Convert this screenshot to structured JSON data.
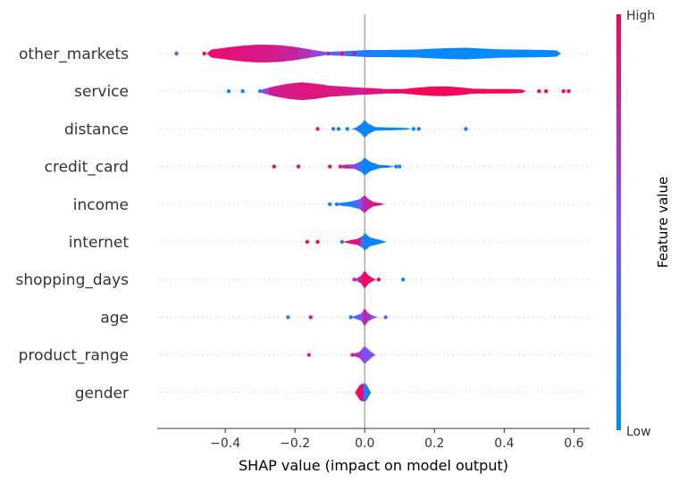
{
  "chart_data": {
    "type": "violin",
    "xlabel": "SHAP value (impact on model output)",
    "xlim": [
      -0.595,
      0.645
    ],
    "xticks": [
      -0.4,
      -0.2,
      0.0,
      0.2,
      0.4,
      0.6
    ],
    "xtick_labels": [
      "−0.4",
      "−0.2",
      "0.0",
      "0.2",
      "0.4",
      "0.6"
    ],
    "colorbar": {
      "title": "Feature value",
      "high_label": "High",
      "low_label": "Low",
      "low_color": "#008bfb",
      "high_color": "#ff0052"
    },
    "features": [
      {
        "name": "other_markets",
        "segments": [
          {
            "x": -0.44,
            "w": 0.45,
            "c": 0.92
          },
          {
            "x": -0.4,
            "w": 0.65,
            "c": 0.9
          },
          {
            "x": -0.36,
            "w": 0.85,
            "c": 0.88
          },
          {
            "x": -0.32,
            "w": 0.97,
            "c": 0.86
          },
          {
            "x": -0.29,
            "w": 1.0,
            "c": 0.85
          },
          {
            "x": -0.25,
            "w": 0.95,
            "c": 0.82
          },
          {
            "x": -0.21,
            "w": 0.8,
            "c": 0.78
          },
          {
            "x": -0.17,
            "w": 0.55,
            "c": 0.72
          },
          {
            "x": -0.14,
            "w": 0.35,
            "c": 0.6
          },
          {
            "x": -0.11,
            "w": 0.18,
            "c": 0.45
          },
          {
            "x": 0.01,
            "w": 0.4,
            "c": 0.15
          },
          {
            "x": 0.05,
            "w": 0.4,
            "c": 0.06
          },
          {
            "x": 0.1,
            "w": 0.42,
            "c": 0.04
          },
          {
            "x": 0.15,
            "w": 0.45,
            "c": 0.03
          },
          {
            "x": 0.2,
            "w": 0.55,
            "c": 0.03
          },
          {
            "x": 0.25,
            "w": 0.62,
            "c": 0.03
          },
          {
            "x": 0.29,
            "w": 0.65,
            "c": 0.03
          },
          {
            "x": 0.33,
            "w": 0.58,
            "c": 0.03
          },
          {
            "x": 0.38,
            "w": 0.48,
            "c": 0.03
          },
          {
            "x": 0.43,
            "w": 0.45,
            "c": 0.03
          },
          {
            "x": 0.48,
            "w": 0.42,
            "c": 0.03
          },
          {
            "x": 0.52,
            "w": 0.4,
            "c": 0.03
          },
          {
            "x": 0.55,
            "w": 0.35,
            "c": 0.03
          }
        ],
        "points": [
          {
            "x": -0.54,
            "c": 0.6
          },
          {
            "x": -0.46,
            "c": 0.9
          },
          {
            "x": -0.105,
            "c": 0.8
          },
          {
            "x": -0.09,
            "c": 0.4
          },
          {
            "x": -0.08,
            "c": 0.3
          },
          {
            "x": -0.065,
            "c": 0.95
          },
          {
            "x": -0.05,
            "c": 0.2
          },
          {
            "x": -0.03,
            "c": 0.9
          },
          {
            "x": -0.01,
            "c": 0.15
          }
        ]
      },
      {
        "name": "service",
        "segments": [
          {
            "x": -0.29,
            "w": 0.25,
            "c": 0.6
          },
          {
            "x": -0.26,
            "w": 0.55,
            "c": 0.82
          },
          {
            "x": -0.22,
            "w": 0.85,
            "c": 0.85
          },
          {
            "x": -0.18,
            "w": 1.0,
            "c": 0.86
          },
          {
            "x": -0.14,
            "w": 0.85,
            "c": 0.87
          },
          {
            "x": -0.1,
            "w": 0.62,
            "c": 0.86
          },
          {
            "x": -0.06,
            "w": 0.52,
            "c": 0.85
          },
          {
            "x": -0.02,
            "w": 0.42,
            "c": 0.8
          },
          {
            "x": 0.02,
            "w": 0.35,
            "c": 0.88
          },
          {
            "x": 0.06,
            "w": 0.25,
            "c": 0.9
          },
          {
            "x": 0.11,
            "w": 0.25,
            "c": 0.97
          },
          {
            "x": 0.15,
            "w": 0.4,
            "c": 0.98
          },
          {
            "x": 0.19,
            "w": 0.52,
            "c": 0.98
          },
          {
            "x": 0.23,
            "w": 0.55,
            "c": 0.98
          },
          {
            "x": 0.27,
            "w": 0.45,
            "c": 0.98
          },
          {
            "x": 0.31,
            "w": 0.28,
            "c": 0.98
          },
          {
            "x": 0.36,
            "w": 0.25,
            "c": 0.98
          },
          {
            "x": 0.41,
            "w": 0.25,
            "c": 0.98
          },
          {
            "x": 0.45,
            "w": 0.2,
            "c": 0.98
          }
        ],
        "points": [
          {
            "x": -0.39,
            "c": 0.0
          },
          {
            "x": -0.35,
            "c": 0.0
          },
          {
            "x": -0.3,
            "c": 0.05
          },
          {
            "x": 0.5,
            "c": 0.98
          },
          {
            "x": 0.52,
            "c": 0.98
          },
          {
            "x": 0.57,
            "c": 0.98
          },
          {
            "x": 0.585,
            "c": 0.98
          }
        ]
      },
      {
        "name": "distance",
        "segments": [
          {
            "x": -0.025,
            "w": 0.15,
            "c": 0.1
          },
          {
            "x": -0.01,
            "w": 0.55,
            "c": 0.05
          },
          {
            "x": 0.0,
            "w": 1.0,
            "c": 0.05
          },
          {
            "x": 0.01,
            "w": 0.6,
            "c": 0.05
          },
          {
            "x": 0.03,
            "w": 0.2,
            "c": 0.05
          },
          {
            "x": 0.06,
            "w": 0.17,
            "c": 0.05
          },
          {
            "x": 0.09,
            "w": 0.14,
            "c": 0.05
          },
          {
            "x": 0.12,
            "w": 0.1,
            "c": 0.05
          }
        ],
        "points": [
          {
            "x": -0.135,
            "c": 0.9
          },
          {
            "x": -0.09,
            "c": 0.3
          },
          {
            "x": -0.075,
            "c": 0.1
          },
          {
            "x": -0.05,
            "c": 0.05
          },
          {
            "x": 0.14,
            "c": 0.05
          },
          {
            "x": 0.155,
            "c": 0.05
          },
          {
            "x": 0.29,
            "c": 0.05
          }
        ]
      },
      {
        "name": "credit_card",
        "segments": [
          {
            "x": -0.06,
            "w": 0.2,
            "c": 0.85
          },
          {
            "x": -0.03,
            "w": 0.25,
            "c": 0.6
          },
          {
            "x": -0.01,
            "w": 0.6,
            "c": 0.2
          },
          {
            "x": 0.0,
            "w": 1.0,
            "c": 0.05
          },
          {
            "x": 0.015,
            "w": 0.55,
            "c": 0.05
          },
          {
            "x": 0.04,
            "w": 0.2,
            "c": 0.05
          },
          {
            "x": 0.07,
            "w": 0.12,
            "c": 0.05
          }
        ],
        "points": [
          {
            "x": -0.26,
            "c": 0.95
          },
          {
            "x": -0.19,
            "c": 0.9
          },
          {
            "x": -0.1,
            "c": 0.9
          },
          {
            "x": -0.07,
            "c": 0.85
          },
          {
            "x": 0.09,
            "c": 0.05
          },
          {
            "x": 0.1,
            "c": 0.05
          }
        ]
      },
      {
        "name": "income",
        "segments": [
          {
            "x": -0.07,
            "w": 0.15,
            "c": 0.1
          },
          {
            "x": -0.04,
            "w": 0.3,
            "c": 0.1
          },
          {
            "x": -0.015,
            "w": 0.55,
            "c": 0.4
          },
          {
            "x": 0.0,
            "w": 1.0,
            "c": 0.75
          },
          {
            "x": 0.01,
            "w": 0.6,
            "c": 0.8
          },
          {
            "x": 0.025,
            "w": 0.25,
            "c": 0.85
          },
          {
            "x": 0.045,
            "w": 0.12,
            "c": 0.9
          }
        ],
        "points": [
          {
            "x": -0.1,
            "c": 0.05
          },
          {
            "x": -0.08,
            "c": 0.1
          }
        ]
      },
      {
        "name": "internet",
        "segments": [
          {
            "x": -0.05,
            "w": 0.12,
            "c": 0.95
          },
          {
            "x": -0.02,
            "w": 0.35,
            "c": 0.9
          },
          {
            "x": -0.005,
            "w": 0.7,
            "c": 0.3
          },
          {
            "x": 0.0,
            "w": 1.0,
            "c": 0.05
          },
          {
            "x": 0.015,
            "w": 0.5,
            "c": 0.05
          },
          {
            "x": 0.035,
            "w": 0.3,
            "c": 0.05
          },
          {
            "x": 0.05,
            "w": 0.15,
            "c": 0.05
          }
        ],
        "points": [
          {
            "x": -0.165,
            "c": 0.95
          },
          {
            "x": -0.135,
            "c": 0.95
          },
          {
            "x": -0.065,
            "c": 0.1
          }
        ]
      },
      {
        "name": "shopping_days",
        "segments": [
          {
            "x": -0.02,
            "w": 0.2,
            "c": 0.7
          },
          {
            "x": -0.01,
            "w": 0.45,
            "c": 0.85
          },
          {
            "x": 0.0,
            "w": 1.0,
            "c": 0.95
          },
          {
            "x": 0.01,
            "w": 0.5,
            "c": 0.95
          },
          {
            "x": 0.02,
            "w": 0.25,
            "c": 0.9
          }
        ],
        "points": [
          {
            "x": -0.03,
            "c": 0.7
          },
          {
            "x": 0.04,
            "c": 0.95
          },
          {
            "x": 0.11,
            "c": 0.05
          }
        ]
      },
      {
        "name": "age",
        "segments": [
          {
            "x": -0.025,
            "w": 0.2,
            "c": 0.3
          },
          {
            "x": -0.01,
            "w": 0.4,
            "c": 0.5
          },
          {
            "x": 0.0,
            "w": 1.0,
            "c": 0.75
          },
          {
            "x": 0.01,
            "w": 0.45,
            "c": 0.7
          },
          {
            "x": 0.025,
            "w": 0.15,
            "c": 0.5
          }
        ],
        "points": [
          {
            "x": -0.22,
            "c": 0.05
          },
          {
            "x": -0.155,
            "c": 0.9
          },
          {
            "x": -0.04,
            "c": 0.1
          },
          {
            "x": 0.06,
            "c": 0.5
          }
        ]
      },
      {
        "name": "product_range",
        "segments": [
          {
            "x": -0.03,
            "w": 0.15,
            "c": 0.8
          },
          {
            "x": -0.015,
            "w": 0.35,
            "c": 0.7
          },
          {
            "x": -0.005,
            "w": 0.8,
            "c": 0.55
          },
          {
            "x": 0.0,
            "w": 1.0,
            "c": 0.5
          },
          {
            "x": 0.008,
            "w": 0.7,
            "c": 0.5
          },
          {
            "x": 0.018,
            "w": 0.35,
            "c": 0.5
          }
        ],
        "points": [
          {
            "x": -0.16,
            "c": 0.75
          },
          {
            "x": -0.035,
            "c": 0.8
          }
        ]
      },
      {
        "name": "gender",
        "segments": [
          {
            "x": -0.015,
            "w": 0.8,
            "c": 0.95
          },
          {
            "x": -0.007,
            "w": 1.0,
            "c": 0.9
          },
          {
            "x": 0.0,
            "w": 1.0,
            "c": 0.3
          },
          {
            "x": 0.005,
            "w": 0.9,
            "c": 0.05
          }
        ],
        "points": []
      }
    ]
  }
}
